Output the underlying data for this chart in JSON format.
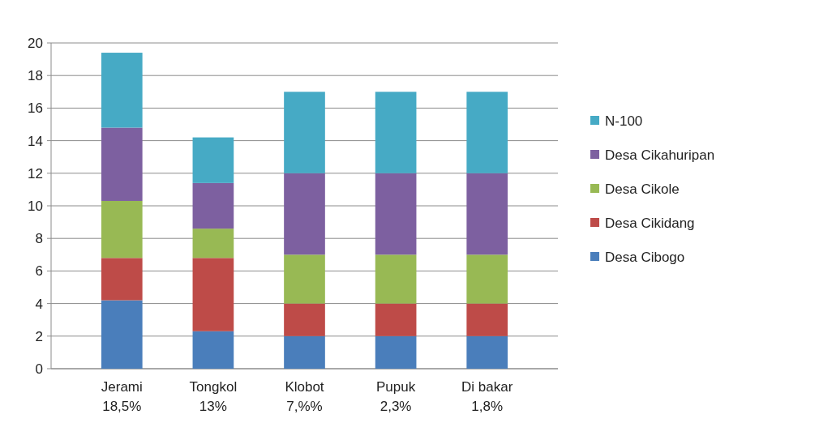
{
  "chart_data": {
    "type": "bar",
    "stacked": true,
    "categories": [
      "Jerami\n18,5%",
      "Tongkol\n13%",
      "Klobot\n7,%%",
      "Pupuk\n2,3%",
      "Di bakar\n1,8%"
    ],
    "series": [
      {
        "name": "Desa Cibogo",
        "color": "#4a7ebb",
        "values": [
          4.2,
          2.3,
          2,
          2,
          2
        ]
      },
      {
        "name": "Desa Cikidang",
        "color": "#be4b48",
        "values": [
          2.6,
          4.5,
          2,
          2,
          2
        ]
      },
      {
        "name": "Desa Cikole",
        "color": "#98b954",
        "values": [
          3.5,
          1.8,
          3,
          3,
          3
        ]
      },
      {
        "name": "Desa Cikahuripan",
        "color": "#7d60a0",
        "values": [
          4.5,
          2.8,
          5,
          5,
          5
        ]
      },
      {
        "name": "N-100",
        "color": "#46aac5",
        "values": [
          4.6,
          2.8,
          5,
          5,
          5
        ]
      }
    ],
    "ylim": [
      0,
      20
    ],
    "yticks": [
      0,
      2,
      4,
      6,
      8,
      10,
      12,
      14,
      16,
      18,
      20
    ],
    "grid": "y",
    "legend": "right"
  }
}
